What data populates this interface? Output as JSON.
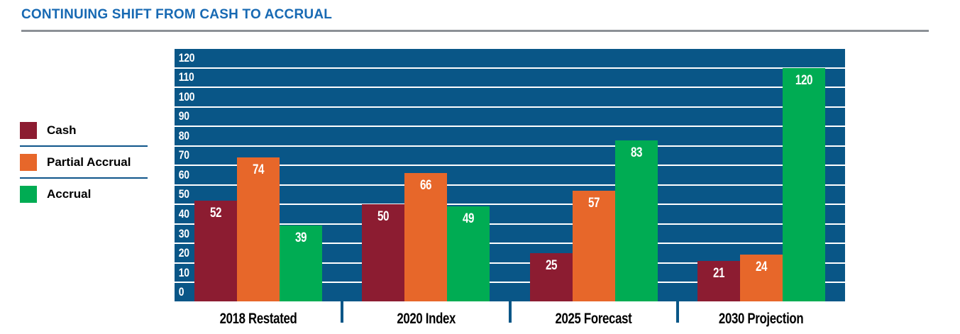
{
  "header": {
    "title": "CONTINUING SHIFT FROM CASH TO ACCRUAL"
  },
  "colors": {
    "title_blue": "#1769B3",
    "rule_gray": "#8C9196",
    "legend_divider_blue": "#0F558A",
    "plot_background_blue": "#095687",
    "gridline_white": "#FFFFFF",
    "value_label_white": "#FFFFFF"
  },
  "legend": {
    "items": [
      {
        "label": "Cash",
        "color": "#8C1C31"
      },
      {
        "label": "Partial Accrual",
        "color": "#E7672A"
      },
      {
        "label": "Accrual",
        "color": "#00AC53"
      }
    ]
  },
  "chart_data": {
    "type": "bar",
    "title": "CONTINUING SHIFT FROM CASH TO ACCRUAL",
    "categories": [
      "2018 Restated",
      "2020 Index",
      "2025 Forecast",
      "2030 Projection"
    ],
    "series": [
      {
        "name": "Cash",
        "color": "#8C1C31",
        "values": [
          52,
          50,
          25,
          21
        ]
      },
      {
        "name": "Partial Accrual",
        "color": "#E7672A",
        "values": [
          74,
          66,
          57,
          24
        ]
      },
      {
        "name": "Accrual",
        "color": "#00AC53",
        "values": [
          39,
          49,
          83,
          120
        ]
      }
    ],
    "xlabel": "",
    "ylabel": "",
    "ylim": [
      0,
      130
    ],
    "ytick_step": 10,
    "ytick_labels": [
      "120",
      "110",
      "100",
      "90",
      "80",
      "70",
      "60",
      "50",
      "40",
      "30",
      "20",
      "10",
      "0"
    ],
    "grid": "horizontal-white-on-blue",
    "legend_position": "left",
    "value_labels": true
  }
}
